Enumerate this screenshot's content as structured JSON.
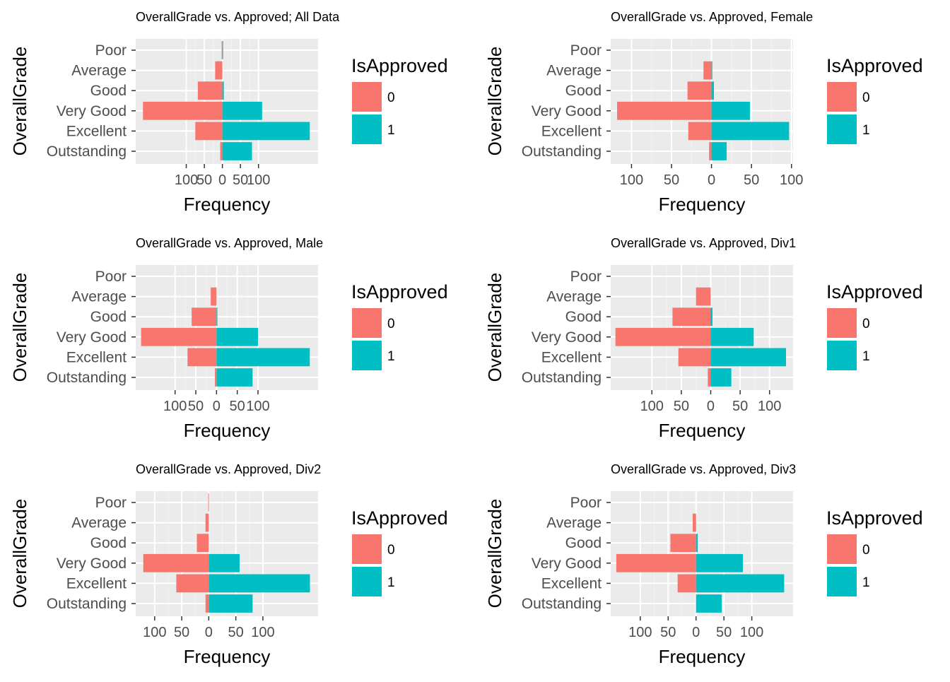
{
  "colors": {
    "panel_bg": "#EBEBEB",
    "grid_major": "#FFFFFF",
    "grid_minor": "#F2F2F2",
    "series_0": "#F8766D",
    "series_1": "#00BFC4",
    "tick": "#333333"
  },
  "chart_data": [
    {
      "type": "bar",
      "orientation": "horizontal-diverging",
      "title": "OverallGrade vs. Approved; All Data",
      "xlabel": "Frequency",
      "ylabel": "OverallGrade",
      "categories": [
        "Poor",
        "Average",
        "Good",
        "Very Good",
        "Excellent",
        "Outstanding"
      ],
      "series": [
        {
          "name": "0",
          "values": [
            -2,
            -20,
            -68,
            -220,
            -75,
            -6
          ]
        },
        {
          "name": "1",
          "values": [
            1,
            0,
            4,
            110,
            242,
            82
          ]
        }
      ],
      "xlim": [
        -240,
        265
      ],
      "xticks": [
        -100,
        -50,
        0,
        50,
        100
      ],
      "xtick_labels": [
        "100",
        "50",
        "0",
        "50",
        "100"
      ],
      "legend": {
        "title": "IsApproved",
        "labels": [
          "0",
          "1"
        ],
        "position": "right"
      },
      "grid": true
    },
    {
      "type": "bar",
      "orientation": "horizontal-diverging",
      "title": "OverallGrade vs. Approved, Female",
      "xlabel": "Frequency",
      "ylabel": "OverallGrade",
      "categories": [
        "Poor",
        "Average",
        "Good",
        "Very Good",
        "Excellent",
        "Outstanding"
      ],
      "series": [
        {
          "name": "0",
          "values": [
            0,
            -10,
            -30,
            -118,
            -29,
            -3
          ]
        },
        {
          "name": "1",
          "values": [
            0,
            1,
            3,
            48,
            97,
            19
          ]
        }
      ],
      "xlim": [
        -126,
        102
      ],
      "xticks": [
        -100,
        -50,
        0,
        50,
        100
      ],
      "xtick_labels": [
        "100",
        "50",
        "0",
        "50",
        "100"
      ],
      "legend": {
        "title": "IsApproved",
        "labels": [
          "0",
          "1"
        ],
        "position": "right"
      },
      "grid": true
    },
    {
      "type": "bar",
      "orientation": "horizontal-diverging",
      "title": "OverallGrade vs. Approved, Male",
      "xlabel": "Frequency",
      "ylabel": "OverallGrade",
      "categories": [
        "Poor",
        "Average",
        "Good",
        "Very Good",
        "Excellent",
        "Outstanding"
      ],
      "series": [
        {
          "name": "0",
          "values": [
            0,
            -14,
            -60,
            -182,
            -70,
            -4
          ]
        },
        {
          "name": "1",
          "values": [
            0,
            0,
            2,
            100,
            225,
            87
          ]
        }
      ],
      "xlim": [
        -195,
        245
      ],
      "xticks": [
        -100,
        -50,
        0,
        50,
        100
      ],
      "xtick_labels": [
        "100",
        "50",
        "0",
        "50",
        "100"
      ],
      "legend": {
        "title": "IsApproved",
        "labels": [
          "0",
          "1"
        ],
        "position": "right"
      },
      "grid": true
    },
    {
      "type": "bar",
      "orientation": "horizontal-diverging",
      "title": "OverallGrade vs. Approved, Div1",
      "xlabel": "Frequency",
      "ylabel": "OverallGrade",
      "categories": [
        "Poor",
        "Average",
        "Good",
        "Very Good",
        "Excellent",
        "Outstanding"
      ],
      "series": [
        {
          "name": "0",
          "values": [
            0,
            -25,
            -65,
            -162,
            -55,
            -5
          ]
        },
        {
          "name": "1",
          "values": [
            0,
            0,
            3,
            73,
            128,
            35
          ]
        }
      ],
      "xlim": [
        -170,
        140
      ],
      "xticks": [
        -100,
        -50,
        0,
        50,
        100
      ],
      "xtick_labels": [
        "100",
        "50",
        "0",
        "50",
        "100"
      ],
      "legend": {
        "title": "IsApproved",
        "labels": [
          "0",
          "1"
        ],
        "position": "right"
      },
      "grid": true
    },
    {
      "type": "bar",
      "orientation": "horizontal-diverging",
      "title": "OverallGrade vs. Approved, Div2",
      "xlabel": "Frequency",
      "ylabel": "OverallGrade",
      "categories": [
        "Poor",
        "Average",
        "Good",
        "Very Good",
        "Excellent",
        "Outstanding"
      ],
      "series": [
        {
          "name": "0",
          "values": [
            -1,
            -6,
            -22,
            -121,
            -60,
            -6
          ]
        },
        {
          "name": "1",
          "values": [
            0,
            0,
            0,
            57,
            187,
            81
          ]
        }
      ],
      "xlim": [
        -135,
        202
      ],
      "xticks": [
        -100,
        -50,
        0,
        50,
        100
      ],
      "xtick_labels": [
        "100",
        "50",
        "0",
        "50",
        "100"
      ],
      "legend": {
        "title": "IsApproved",
        "labels": [
          "0",
          "1"
        ],
        "position": "right"
      },
      "grid": true
    },
    {
      "type": "bar",
      "orientation": "horizontal-diverging",
      "title": "OverallGrade vs. Approved, Div3",
      "xlabel": "Frequency",
      "ylabel": "OverallGrade",
      "categories": [
        "Poor",
        "Average",
        "Good",
        "Very Good",
        "Excellent",
        "Outstanding"
      ],
      "series": [
        {
          "name": "0",
          "values": [
            0,
            -6,
            -46,
            -143,
            -33,
            0
          ]
        },
        {
          "name": "1",
          "values": [
            0,
            0,
            3,
            84,
            158,
            46
          ]
        }
      ],
      "xlim": [
        -153,
        174
      ],
      "xticks": [
        -100,
        -50,
        0,
        50,
        100
      ],
      "xtick_labels": [
        "100",
        "50",
        "0",
        "50",
        "100"
      ],
      "legend": {
        "title": "IsApproved",
        "labels": [
          "0",
          "1"
        ],
        "position": "right"
      },
      "grid": true
    }
  ]
}
